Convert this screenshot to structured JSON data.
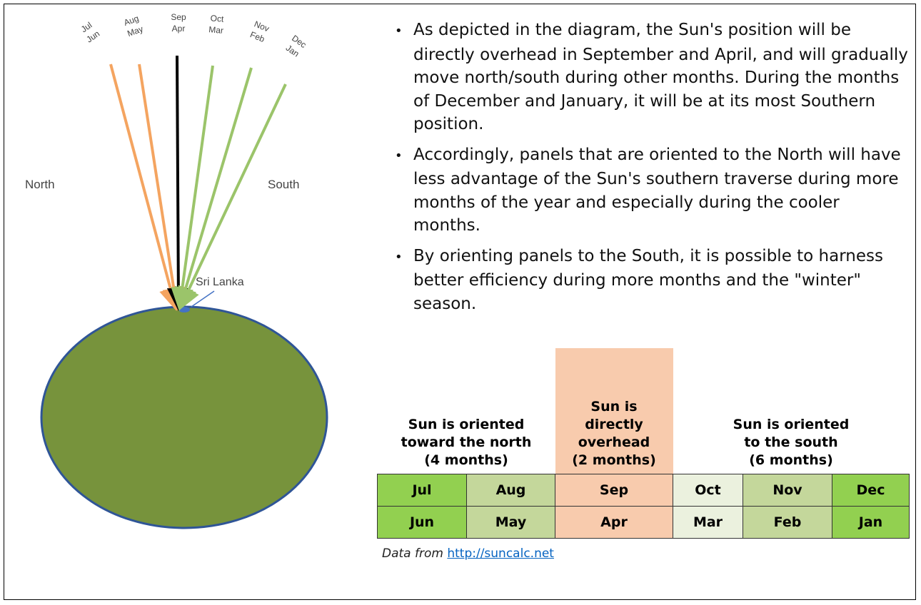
{
  "diagram": {
    "rays": [
      {
        "top": "Jul",
        "bottom": "Jun"
      },
      {
        "top": "Aug",
        "bottom": "May"
      },
      {
        "top": "Sep",
        "bottom": "Apr"
      },
      {
        "top": "Oct",
        "bottom": "Mar"
      },
      {
        "top": "Nov",
        "bottom": "Feb"
      },
      {
        "top": "Dec",
        "bottom": "Jan"
      }
    ],
    "north": "North",
    "south": "South",
    "location": "Sri Lanka"
  },
  "bullets": [
    "As depicted in the diagram, the Sun's position will be directly overhead in September and April, and will gradually move north/south during other months. During the months of December and January, it will be at its most Southern position.",
    "Accordingly, panels that are oriented to the North will have less advantage of the Sun's southern traverse during more months of the year and especially during the cooler months.",
    "By orienting panels to the South, it is possible to harness better efficiency during more months and the \"winter\" season."
  ],
  "table": {
    "header": [
      [
        "Sun is oriented",
        "toward the north",
        "(4 months)"
      ],
      [
        "Sun is",
        "directly",
        "overhead",
        "(2 months)"
      ],
      [
        "Sun is oriented",
        "to the south",
        "(6 months)"
      ]
    ],
    "rows": [
      [
        "Jul",
        "Aug",
        "Sep",
        "Oct",
        "Nov",
        "Dec"
      ],
      [
        "Jun",
        "May",
        "Apr",
        "Mar",
        "Feb",
        "Jan"
      ]
    ]
  },
  "source": {
    "prefix": "Data from",
    "link": "http://suncalc.net"
  }
}
